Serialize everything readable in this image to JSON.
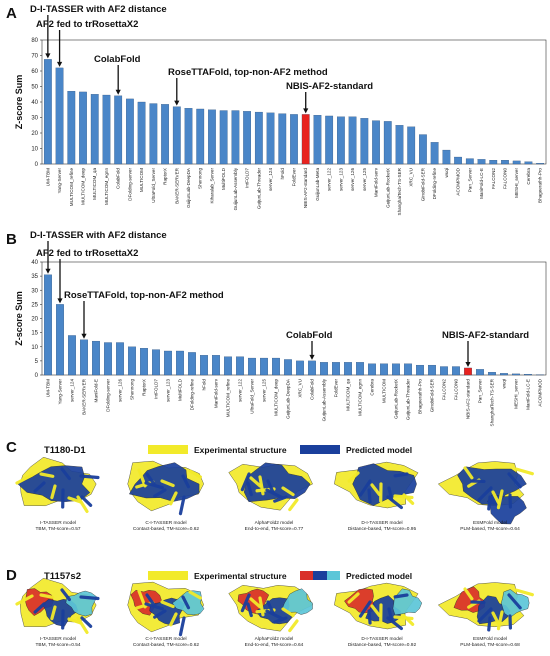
{
  "panels": {
    "a": "A",
    "b": "B",
    "c": "C",
    "d": "D"
  },
  "chart_data": [
    {
      "type": "bar",
      "ylabel": "Z-score Sum",
      "ylim": [
        0,
        80
      ],
      "yticks": [
        0,
        10,
        20,
        30,
        40,
        50,
        60,
        70,
        80
      ],
      "categories": [
        "UM-TBM",
        "Yang-Server",
        "MULTICOM_refine",
        "MULTICOM_deep",
        "MULTICOM_qa",
        "MULTICOM_egnn",
        "ColabFold",
        "DFolding-server",
        "MULTICOM",
        "UltraFold_Server",
        "RaptorX",
        "BAKER-SERVER",
        "GuijunLab-DeepDA",
        "Shennong",
        "Kiharalab_Server",
        "MultiFOLD",
        "GuijunLab-Assembly",
        "IntFOLD7",
        "GuijunLab-Threader",
        "server_124",
        "hFold",
        "FoldEver",
        "NBIS-AF2-standard",
        "GuijunLab-Meta",
        "server_122",
        "server_123",
        "server_126",
        "server_125",
        "ManiFold-serv",
        "GuijunLab-RocketX",
        "ShanghaiTech-TS-SER",
        "XRC_VU",
        "GinobiFold-SER",
        "DFolding-refine",
        "wuqi",
        "ACOMPMOD",
        "Pan_Server",
        "ManiFold-LC-E",
        "FALCON2",
        "FALCON0",
        "MESHI_server",
        "Cerebra",
        "Bhageerathh-Pro"
      ],
      "values": [
        67.5,
        62,
        47,
        46.5,
        45,
        44.5,
        44,
        42,
        40,
        39,
        38.5,
        37,
        36,
        35.5,
        35,
        34.5,
        34.5,
        34,
        33.5,
        33,
        32.5,
        32,
        32,
        31.5,
        31,
        30.5,
        30.5,
        29.5,
        28,
        27.5,
        25,
        24,
        19,
        14,
        9,
        4.5,
        3.5,
        3,
        2.5,
        2.5,
        2,
        1.5,
        0.5
      ],
      "highlight": "NBIS-AF2-standard",
      "annotations": [
        {
          "text": "D-I-TASSER with AF2 distance",
          "target": "UM-TBM"
        },
        {
          "text": "AF2 fed to trRosettaX2",
          "target": "Yang-Server"
        },
        {
          "text": "ColabFold",
          "target": "ColabFold"
        },
        {
          "text": "RoseTTAFold, top-non-AF2 method",
          "target": "BAKER-SERVER"
        },
        {
          "text": "NBIS-AF2-standard",
          "target": "NBIS-AF2-standard"
        }
      ]
    },
    {
      "type": "bar",
      "ylabel": "Z-score Sum",
      "ylim": [
        0,
        40
      ],
      "yticks": [
        0,
        5,
        10,
        15,
        20,
        25,
        30,
        35,
        40
      ],
      "categories": [
        "UM-TBM",
        "Yang-Server",
        "server_124",
        "BAKER-SERVER",
        "ManiFold-E",
        "DFolding-server",
        "server_126",
        "Shennong",
        "RaptorX",
        "IntFOLD7",
        "server_123",
        "MultiFOLD",
        "DFolding-refine",
        "hFold",
        "ManiFold-serv",
        "MULTICOM_refine",
        "server_122",
        "UltraFold_Server",
        "server_125",
        "MULTICOM_deep",
        "GuijunLab-DeepDA",
        "XRC_VU",
        "ColabFold",
        "GuijunLab-Assembly",
        "FoldEver",
        "MULTICOM_qa",
        "MULTICOM_egnn",
        "Cerebra",
        "MULTICOM",
        "GuijunLab-RocketX",
        "GuijunLab-Threader",
        "Bhageerathh-Pro",
        "GinobiFold-SER",
        "FALCON2",
        "FALCON0",
        "NBIS-AF2-standard",
        "Pan_Server",
        "ShanghaiTech-TS-SER",
        "wuqi",
        "MESHI_server",
        "ManiFold-LC-E",
        "ACOMPMOD"
      ],
      "values": [
        35.5,
        25,
        14,
        12.5,
        12,
        11.5,
        11.5,
        10,
        9.5,
        9,
        8.5,
        8.5,
        8,
        7,
        7,
        6.5,
        6.5,
        6,
        6,
        6,
        5.5,
        5,
        5,
        4.5,
        4.5,
        4.5,
        4.5,
        4,
        4,
        4,
        4,
        3.5,
        3.5,
        3,
        3,
        2.5,
        2,
        1,
        0.6,
        0.4,
        0.3,
        0.1
      ],
      "highlight": "NBIS-AF2-standard",
      "annotations": [
        {
          "text": "D-I-TASSER with AF2 distance",
          "target": "UM-TBM"
        },
        {
          "text": "AF2 fed to trRosettaX2",
          "target": "Yang-Server"
        },
        {
          "text": "RoseTTAFold, top-non-AF2 method",
          "target": "BAKER-SERVER"
        },
        {
          "text": "ColabFold",
          "target": "ColabFold"
        },
        {
          "text": "NBIS-AF2-standard",
          "target": "NBIS-AF2-standard"
        }
      ]
    }
  ],
  "structures": {
    "c": {
      "target": "T1180-D1",
      "legend_exp": "Experimental structure",
      "legend_pred": "Predicted model",
      "captions": [
        [
          "I-TASSER model",
          "TBM, TM-score=0.57"
        ],
        [
          "C-I-TASSER model",
          "Contact-based, TM-score=0.62"
        ],
        [
          "AlphaFold2 model",
          "End-to-end, TM-score=0.77"
        ],
        [
          "D-I-TASSER model",
          "Distance-based, TM-score=0.95"
        ],
        [
          "ESMFold model",
          "PLM-based, TM-score=0.64"
        ]
      ]
    },
    "d": {
      "target": "T1157s2",
      "legend_exp": "Experimental structure",
      "legend_pred": "Predicted model",
      "captions": [
        [
          "I-TASSER model",
          "TBM, TM-score=0.54"
        ],
        [
          "C-I-TASSER model",
          "Contact-based, TM-score=0.62"
        ],
        [
          "AlphaFold2 model",
          "End-to-end, TM-score=0.64"
        ],
        [
          "D-I-TASSER model",
          "Distance-based, TM-score=0.92"
        ],
        [
          "ESMFold model",
          "PLM-based, TM-score=0.68"
        ]
      ]
    }
  },
  "colors": {
    "bar": "#4a86c8",
    "highlight": "#e8231f",
    "exp": "#f2ea2a",
    "pred": "#1a3f9c",
    "red": "#d9302a",
    "cyan": "#5cc6d8"
  }
}
